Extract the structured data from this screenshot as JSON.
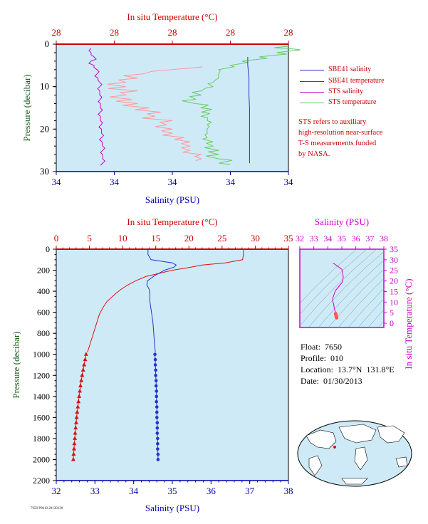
{
  "colors": {
    "plot_bg": "#cfeaf7",
    "axis_red": "#cc0000",
    "axis_blue": "#0000aa",
    "axis_green": "#1a5c1a",
    "sbe41_salinity": "#2233cc",
    "sbe41_temperature": "#dd1111",
    "sts_salinity": "#cc00cc",
    "sts_temperature": "#66cc66",
    "sts_temperature_light": "#ff9999",
    "ts_magenta": "#cc00cc"
  },
  "legend": [
    {
      "label": "SBE41 salinity",
      "color": "#2233cc"
    },
    {
      "label": "SBE41 temperature",
      "color": "#dd1111"
    },
    {
      "label": "STS salinity",
      "color": "#cc00cc"
    },
    {
      "label": "STS temperature",
      "color": "#66cc66"
    }
  ],
  "note": {
    "lines": [
      "STS refers to auxiliary",
      "high-resolution near-surface",
      "T-S measurements funded",
      "by NASA."
    ]
  },
  "info": {
    "float": "Float:  7650",
    "profile": "Profile:  010",
    "location": "Location:  13.7°N  131.8°E",
    "date": "Date:  01/30/2013"
  },
  "footer_stamp": "7650 P0010 20130130",
  "chart_data": [
    {
      "type": "line",
      "name": "near-surface",
      "title_top": "In situ Temperature (°C)",
      "top_ticks": [
        "28",
        "28",
        "28",
        "28",
        "28"
      ],
      "top_ticks_values": [
        27.9,
        28.0,
        28.1,
        28.2,
        28.3
      ],
      "xlabel": "Salinity (PSU)",
      "bottom_ticks": [
        "34",
        "34",
        "34",
        "34",
        "34"
      ],
      "bottom_ticks_values": [
        33.9,
        34.0,
        34.1,
        34.2,
        34.3
      ],
      "ylabel": "Pressure (decibar)",
      "y_ticks": [
        "0",
        "10",
        "20",
        "30"
      ],
      "ylim": [
        30,
        0
      ],
      "xlim_temperature": [
        27.9,
        28.3
      ],
      "xlim_salinity": [
        33.9,
        34.3
      ],
      "series": [
        {
          "name": "STS salinity",
          "pressure": [
            1,
            2,
            3,
            4,
            5,
            6,
            7,
            8,
            9,
            10,
            11,
            12,
            13,
            14,
            15,
            16,
            17,
            18,
            19,
            20,
            21,
            22,
            23,
            24,
            25,
            26,
            27,
            28
          ],
          "values": [
            33.96,
            33.96,
            33.965,
            33.96,
            33.965,
            33.97,
            33.97,
            33.972,
            33.975,
            33.975,
            33.975,
            33.975,
            33.976,
            33.976,
            33.976,
            33.976,
            33.976,
            33.976,
            33.977,
            33.978,
            33.978,
            33.978,
            33.979,
            33.98,
            33.98,
            33.98,
            33.98,
            33.98
          ]
        },
        {
          "name": "STS temperature (lower)",
          "pressure": [
            5,
            6,
            7,
            8,
            9,
            10,
            11,
            12,
            13,
            14,
            15,
            16,
            17,
            18,
            19,
            20,
            21,
            22,
            23,
            24,
            25,
            26,
            27
          ],
          "values": [
            28.15,
            28.1,
            28.05,
            28.04,
            28.02,
            28.02,
            28.04,
            28.02,
            28.03,
            28.04,
            28.06,
            28.08,
            28.07,
            28.1,
            28.09,
            28.1,
            28.1,
            28.12,
            28.13,
            28.13,
            28.13,
            28.15,
            28.15
          ]
        },
        {
          "name": "STS temperature",
          "pressure": [
            0.5,
            1,
            2,
            3,
            4,
            5,
            6,
            7,
            8,
            9,
            10,
            11,
            12,
            13,
            14,
            15,
            16,
            17,
            18,
            19,
            20,
            21,
            22,
            23,
            24,
            25,
            26,
            27,
            28
          ],
          "values": [
            28.3,
            28.3,
            28.28,
            28.25,
            28.22,
            28.2,
            28.18,
            28.18,
            28.18,
            28.17,
            28.17,
            28.15,
            28.15,
            28.14,
            28.14,
            28.15,
            28.15,
            28.15,
            28.16,
            28.16,
            28.16,
            28.16,
            28.16,
            28.17,
            28.17,
            28.18,
            28.18,
            28.18,
            28.18
          ]
        },
        {
          "name": "SBE41 salinity",
          "pressure": [
            3,
            5,
            8,
            10,
            12,
            15,
            18,
            20,
            22,
            24,
            26,
            28
          ],
          "values": [
            34.23,
            34.23,
            34.232,
            34.232,
            34.232,
            34.233,
            34.233,
            34.233,
            34.233,
            34.233,
            34.233,
            34.233
          ]
        }
      ]
    },
    {
      "type": "line",
      "name": "full-profile",
      "title_top": "In situ Temperature (°C)",
      "top_ticks": [
        "0",
        "5",
        "10",
        "15",
        "20",
        "25",
        "30",
        "35"
      ],
      "top_ticks_values": [
        0,
        5,
        10,
        15,
        20,
        25,
        30,
        35
      ],
      "xlabel": "Salinity (PSU)",
      "bottom_ticks": [
        "32",
        "33",
        "34",
        "35",
        "36",
        "37",
        "38"
      ],
      "bottom_ticks_values": [
        32,
        33,
        34,
        35,
        36,
        37,
        38
      ],
      "ylabel": "Pressure (decibar)",
      "y_ticks": [
        "0",
        "200",
        "400",
        "600",
        "800",
        "1000",
        "1200",
        "1400",
        "1600",
        "1800",
        "2000",
        "2200"
      ],
      "ylim": [
        2200,
        0
      ],
      "xlim_temperature": [
        0,
        35
      ],
      "xlim_salinity": [
        32,
        38
      ],
      "series": [
        {
          "name": "SBE41 temperature",
          "pressure": [
            0,
            50,
            100,
            130,
            150,
            180,
            200,
            230,
            260,
            300,
            340,
            380,
            420,
            460,
            500,
            560,
            620,
            680,
            740,
            800,
            860,
            920,
            980
          ],
          "values": [
            28.2,
            28.2,
            28.1,
            25.5,
            22.0,
            19.5,
            17.5,
            15.5,
            13.5,
            12.0,
            10.8,
            9.8,
            9.0,
            8.3,
            7.6,
            7.0,
            6.5,
            6.2,
            5.9,
            5.6,
            5.3,
            5.0,
            4.7
          ]
        },
        {
          "name": "SBE41 temperature (bottle)",
          "pressure": [
            1000,
            1050,
            1100,
            1150,
            1200,
            1250,
            1300,
            1350,
            1400,
            1450,
            1500,
            1550,
            1600,
            1650,
            1700,
            1750,
            1800,
            1850,
            1900,
            1950,
            2000
          ],
          "values": [
            4.5,
            4.35,
            4.2,
            4.05,
            3.9,
            3.78,
            3.65,
            3.55,
            3.45,
            3.35,
            3.25,
            3.15,
            3.07,
            3.0,
            2.92,
            2.85,
            2.8,
            2.73,
            2.68,
            2.62,
            2.57
          ]
        },
        {
          "name": "SBE41 salinity",
          "pressure": [
            0,
            50,
            100,
            130,
            150,
            170,
            200,
            250,
            300,
            340,
            380,
            420,
            500,
            600,
            700,
            800,
            900,
            980
          ],
          "values": [
            34.37,
            34.37,
            34.45,
            35.0,
            35.1,
            35.05,
            34.8,
            34.55,
            34.36,
            34.34,
            34.4,
            34.42,
            34.42,
            34.46,
            34.5,
            34.52,
            34.54,
            34.56
          ]
        },
        {
          "name": "SBE41 salinity (bottle)",
          "pressure": [
            1000,
            1050,
            1100,
            1150,
            1200,
            1250,
            1300,
            1350,
            1400,
            1450,
            1500,
            1550,
            1600,
            1650,
            1700,
            1750,
            1800,
            1850,
            1900,
            1950,
            2000
          ],
          "values": [
            34.55,
            34.56,
            34.56,
            34.57,
            34.57,
            34.58,
            34.58,
            34.59,
            34.59,
            34.59,
            34.6,
            34.6,
            34.6,
            34.61,
            34.61,
            34.61,
            34.62,
            34.62,
            34.62,
            34.63,
            34.63
          ]
        }
      ]
    },
    {
      "type": "scatter",
      "name": "ts-diagram",
      "title_top": "Salinity (PSU)",
      "top_ticks": [
        "32",
        "33",
        "34",
        "35",
        "36",
        "37",
        "38"
      ],
      "top_ticks_values": [
        32,
        33,
        34,
        35,
        36,
        37,
        38
      ],
      "ylabel": "In situ Temperature (°C)",
      "y_ticks": [
        "0",
        "5",
        "10",
        "15",
        "20",
        "25",
        "30",
        "35"
      ],
      "y_ticks_values": [
        0,
        5,
        10,
        15,
        20,
        25,
        30,
        35
      ],
      "xlim": [
        32,
        38
      ],
      "ylim": [
        -2,
        35
      ],
      "grid": true,
      "series": [
        {
          "name": "T-S",
          "salinity": [
            34.37,
            34.45,
            35.0,
            35.1,
            35.05,
            34.8,
            34.55,
            34.36,
            34.34,
            34.42,
            34.46,
            34.5,
            34.54,
            34.56,
            34.58,
            34.6,
            34.63
          ],
          "temperature": [
            28.2,
            28.1,
            25.5,
            22.0,
            19.5,
            17.5,
            15.5,
            12.0,
            10.8,
            9.0,
            7.0,
            6.2,
            5.3,
            4.5,
            3.9,
            3.1,
            2.6
          ]
        }
      ]
    }
  ]
}
